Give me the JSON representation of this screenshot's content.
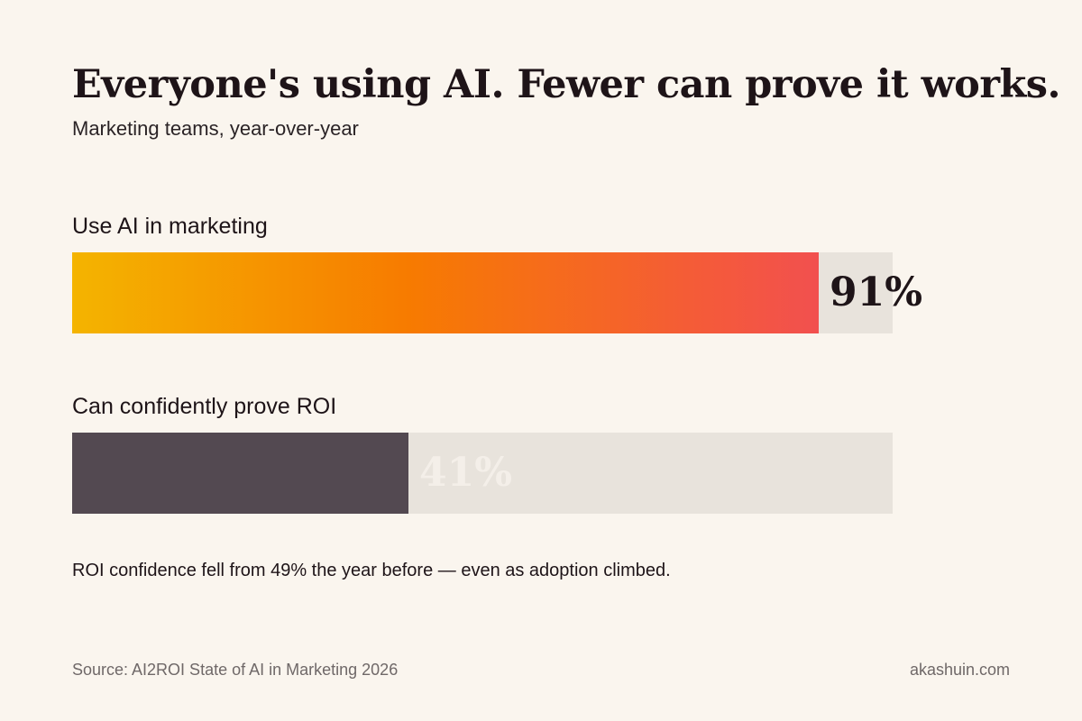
{
  "chart_data": {
    "type": "bar",
    "orientation": "horizontal",
    "title": "Everyone's using AI. Fewer can prove it works.",
    "subtitle": "Marketing teams, year-over-year",
    "xlim": [
      0,
      100
    ],
    "categories": [
      "Use AI in marketing",
      "Can confidently prove ROI"
    ],
    "values": [
      91,
      41
    ],
    "value_labels": [
      "91%",
      "41%"
    ],
    "colors": {
      "bar_1_gradient": [
        "#f4b400",
        "#f77b00",
        "#f2504f"
      ],
      "bar_2": "#534951",
      "track": "#e8e3dc"
    },
    "annotation": "ROI confidence fell from 49% the year before — even as adoption climbed.",
    "grid": false
  },
  "footer": {
    "source": "Source: AI2ROI State of AI in Marketing 2026",
    "credit": "akashuin.com"
  }
}
